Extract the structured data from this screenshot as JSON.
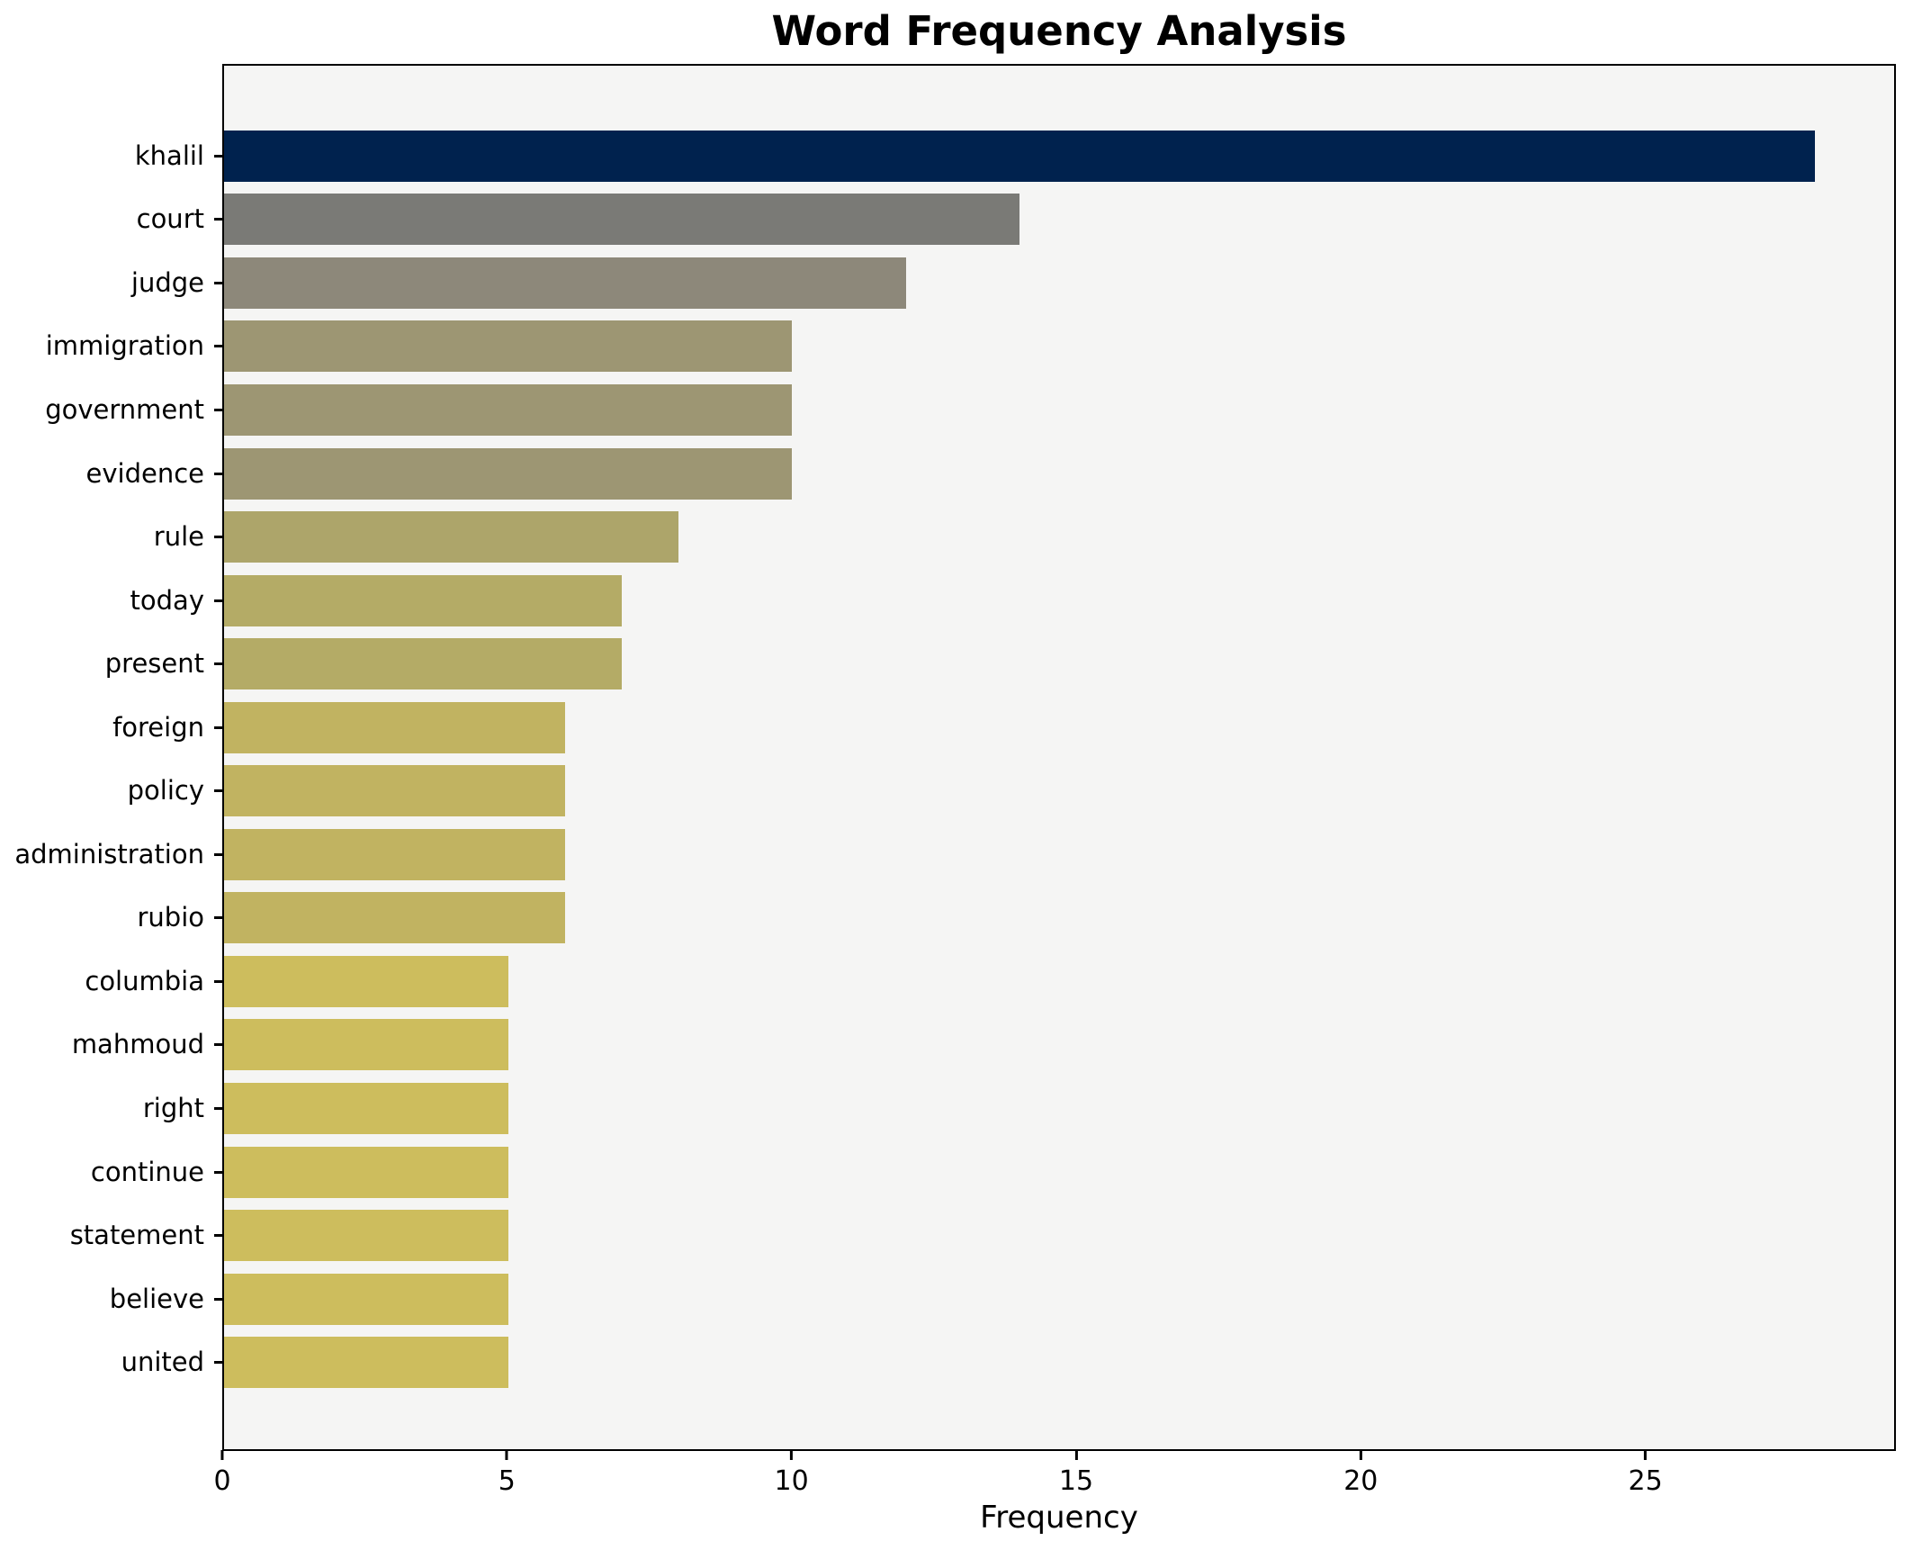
{
  "figure": {
    "background": "#ffffff",
    "plot_background": "#f5f5f4",
    "spine_color": "#000000"
  },
  "chart_data": {
    "type": "bar",
    "orientation": "horizontal",
    "title": "Word Frequency Analysis",
    "xlabel": "Frequency",
    "ylabel": "",
    "categories": [
      "khalil",
      "court",
      "judge",
      "immigration",
      "government",
      "evidence",
      "rule",
      "today",
      "present",
      "foreign",
      "policy",
      "administration",
      "rubio",
      "columbia",
      "mahmoud",
      "right",
      "continue",
      "statement",
      "believe",
      "united"
    ],
    "values": [
      28,
      14,
      12,
      10,
      10,
      10,
      8,
      7,
      7,
      6,
      6,
      6,
      6,
      5,
      5,
      5,
      5,
      5,
      5,
      5
    ],
    "bar_colors": [
      "#00224e",
      "#7a7a76",
      "#8d887a",
      "#9d9673",
      "#9d9673",
      "#9d9673",
      "#ada56a",
      "#b4ab66",
      "#b4ab66",
      "#c1b361",
      "#c1b361",
      "#c1b361",
      "#c1b361",
      "#cdbd5d",
      "#cdbd5d",
      "#cdbd5d",
      "#cdbd5d",
      "#cdbd5d",
      "#cdbd5d",
      "#cdbd5d"
    ],
    "xlim": [
      0,
      29.4
    ],
    "xticks": [
      0,
      5,
      10,
      15,
      20,
      25
    ],
    "grid": false,
    "legend": "none"
  }
}
